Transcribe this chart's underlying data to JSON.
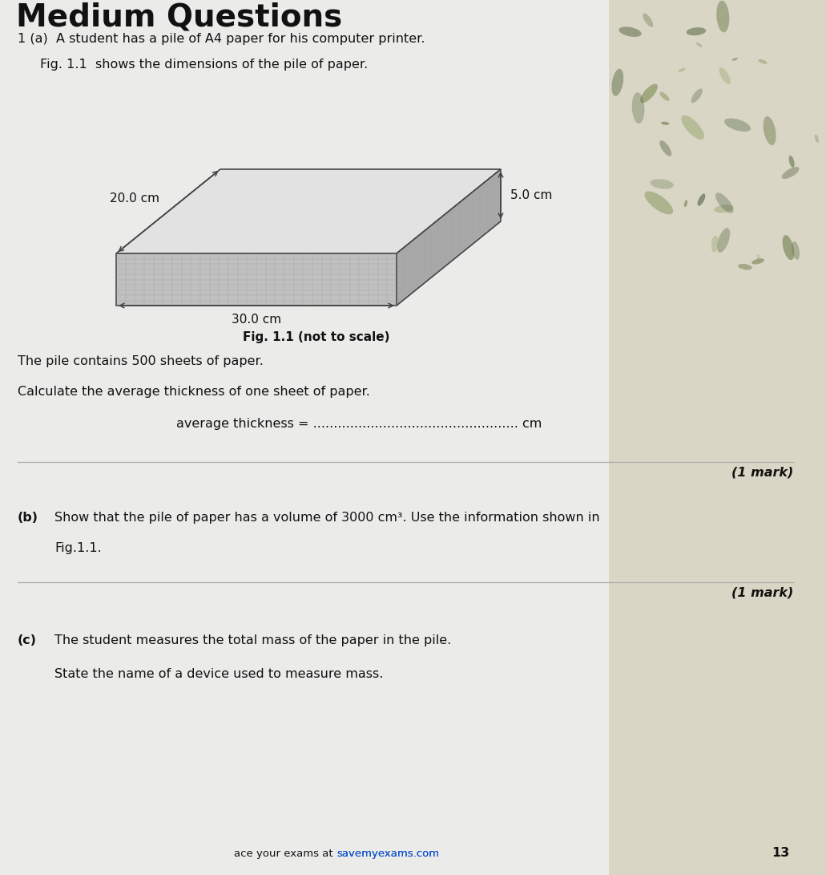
{
  "bg_color": "#ebebea",
  "page_bg": "#ebebea",
  "title": "Medium Questions",
  "q1a_text": "1 (a)  A student has a pile of A4 paper for his computer printer.",
  "fig_caption": "Fig. 1.1  shows the dimensions of the pile of paper.",
  "fig_label": "Fig. 1.1 (not to scale)",
  "dim_top": "20.0 cm",
  "dim_front": "30.0 cm",
  "dim_side": "5.0 cm",
  "pile_text1": "The pile contains 500 sheets of paper.",
  "pile_text2": "Calculate the average thickness of one sheet of paper.",
  "avg_thickness_label": "average thickness = .................................................. cm",
  "mark1": "(1 mark)",
  "q1b_label": "(b)",
  "q1b_line1": "Show that the pile of paper has a volume of 3000 cm³. Use the information shown in",
  "q1b_line2": "Fig.1.1.",
  "mark2": "(1 mark)",
  "q1c_label": "(c)",
  "q1c_text1": "The student measures the total mass of the paper in the pile.",
  "q1c_text2": "State the name of a device used to measure mass.",
  "footer_pre": "ace your exams at ",
  "footer_link": "savemyexams.com",
  "footer_page": "13",
  "top_face_color": "#e2e2e2",
  "side_face_color": "#a8a8a8",
  "front_face_color": "#c0c0c0",
  "hatch_color": "#999999",
  "line_color": "#444444",
  "text_color": "#111111",
  "sep_color": "#aaaaaa",
  "right_bg_color": "#ccc5a8",
  "footer_link_color": "#1155cc"
}
